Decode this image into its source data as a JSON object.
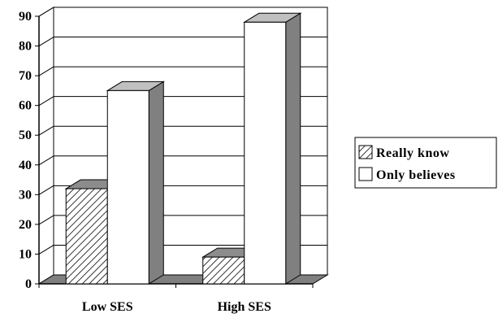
{
  "chart_data": {
    "type": "bar",
    "title": "",
    "xlabel": "",
    "ylabel": "",
    "categories": [
      "Low SES",
      "High SES"
    ],
    "series": [
      {
        "name": "Really know",
        "values": [
          32,
          9
        ],
        "pattern": "diagonal-hatch"
      },
      {
        "name": "Only believes",
        "values": [
          65,
          88
        ],
        "pattern": "solid-white"
      }
    ],
    "ylim": [
      0,
      90
    ],
    "yticks": [
      "0",
      "10",
      "20",
      "30",
      "40",
      "50",
      "60",
      "70",
      "80",
      "90"
    ],
    "grid": true,
    "style": "3d-column",
    "legend_position": "right",
    "colors": {
      "bar_side": "#808080",
      "bar_top": "#c0c0c0",
      "floor": "#808080",
      "wall": "#ffffff",
      "line": "#000000"
    }
  }
}
